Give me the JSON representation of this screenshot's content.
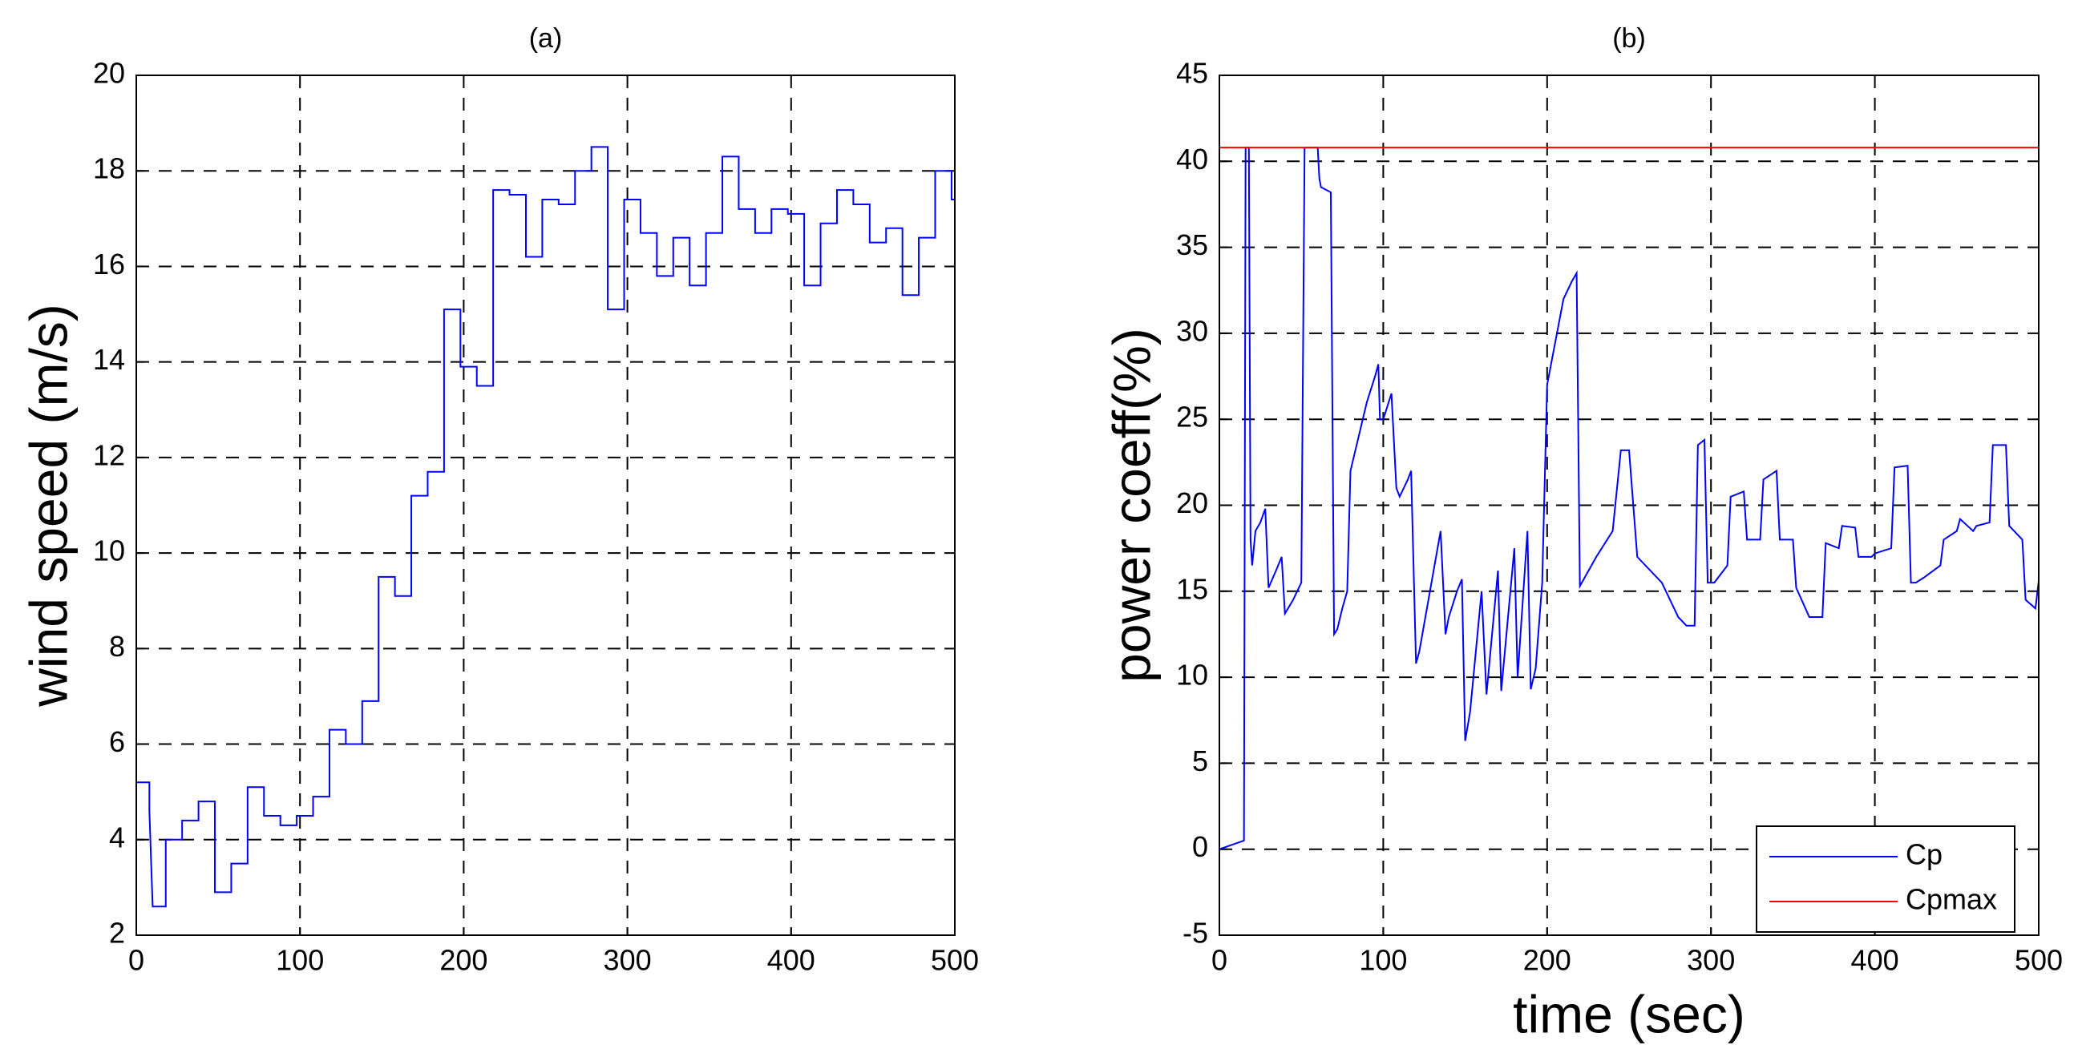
{
  "chart_data": [
    {
      "type": "line",
      "title": "(a)",
      "ylabel": "wind speed (m/s)",
      "xlim": [
        0,
        500
      ],
      "ylim": [
        2,
        20
      ],
      "xticks": [
        0,
        100,
        200,
        300,
        400,
        500
      ],
      "yticks": [
        2,
        4,
        6,
        8,
        10,
        12,
        14,
        16,
        18,
        20
      ],
      "grid": true,
      "series": [
        {
          "color": "#0000ff",
          "x": [
            0,
            8,
            8,
            10,
            18,
            18,
            28,
            28,
            38,
            38,
            48,
            48,
            58,
            58,
            68,
            68,
            78,
            78,
            88,
            88,
            98,
            98,
            108,
            108,
            118,
            118,
            128,
            128,
            138,
            138,
            148,
            148,
            158,
            158,
            168,
            168,
            178,
            178,
            188,
            188,
            198,
            198,
            208,
            208,
            218,
            218,
            228,
            228,
            238,
            238,
            248,
            248,
            258,
            258,
            268,
            268,
            278,
            278,
            288,
            288,
            298,
            298,
            308,
            308,
            318,
            318,
            328,
            328,
            338,
            338,
            348,
            348,
            358,
            358,
            368,
            368,
            378,
            378,
            388,
            388,
            398,
            398,
            408,
            408,
            418,
            418,
            428,
            428,
            438,
            438,
            448,
            448,
            458,
            458,
            468,
            468,
            478,
            478,
            488,
            488,
            498,
            498,
            500
          ],
          "values": [
            5.2,
            5.2,
            4.6,
            2.6,
            2.6,
            4.0,
            4.0,
            4.4,
            4.4,
            4.8,
            4.8,
            2.9,
            2.9,
            3.5,
            3.5,
            5.1,
            5.1,
            4.5,
            4.5,
            4.3,
            4.3,
            4.5,
            4.5,
            4.9,
            4.9,
            6.3,
            6.3,
            6.0,
            6.0,
            6.9,
            6.9,
            9.5,
            9.5,
            9.1,
            9.1,
            11.2,
            11.2,
            11.7,
            11.7,
            15.1,
            15.1,
            13.9,
            13.9,
            13.5,
            13.5,
            17.6,
            17.6,
            17.5,
            17.5,
            16.2,
            16.2,
            17.4,
            17.4,
            17.3,
            17.3,
            18.0,
            18.0,
            18.5,
            18.5,
            15.1,
            15.1,
            17.4,
            17.4,
            16.7,
            16.7,
            15.8,
            15.8,
            16.6,
            16.6,
            15.6,
            15.6,
            16.7,
            16.7,
            18.3,
            18.3,
            17.2,
            17.2,
            16.7,
            16.7,
            17.2,
            17.2,
            17.1,
            17.1,
            15.6,
            15.6,
            16.9,
            16.9,
            17.6,
            17.6,
            17.3,
            17.3,
            16.5,
            16.5,
            16.8,
            16.8,
            15.4,
            15.4,
            16.6,
            16.6,
            18.0,
            18.0,
            17.4,
            17.4
          ]
        }
      ]
    },
    {
      "type": "line",
      "title": "(b)",
      "xlabel": "time (sec)",
      "ylabel": "power coeff(%)",
      "xlim": [
        0,
        500
      ],
      "ylim": [
        -5,
        45
      ],
      "xticks": [
        0,
        100,
        200,
        300,
        400,
        500
      ],
      "yticks": [
        -5,
        0,
        5,
        10,
        15,
        20,
        25,
        30,
        35,
        40,
        45
      ],
      "grid": true,
      "legend": "lower right",
      "series": [
        {
          "name": "Cp",
          "color": "#0000ff",
          "x": [
            0,
            15,
            16,
            18,
            19,
            20,
            22,
            25,
            28,
            30,
            35,
            38,
            40,
            45,
            50,
            52,
            60,
            61,
            62,
            68,
            70,
            72,
            75,
            78,
            80,
            90,
            95,
            97,
            98,
            100,
            105,
            108,
            110,
            115,
            117,
            120,
            122,
            135,
            138,
            140,
            145,
            148,
            150,
            153,
            160,
            163,
            170,
            172,
            180,
            182,
            188,
            190,
            193,
            197,
            200,
            202,
            210,
            215,
            218,
            220,
            230,
            240,
            245,
            250,
            255,
            270,
            280,
            285,
            290,
            292,
            296,
            298,
            300,
            302,
            310,
            312,
            320,
            322,
            330,
            332,
            340,
            342,
            350,
            352,
            360,
            362,
            368,
            370,
            378,
            380,
            388,
            390,
            398,
            400,
            410,
            412,
            420,
            422,
            425,
            430,
            440,
            442,
            450,
            452,
            460,
            462,
            470,
            472,
            480,
            482,
            490,
            492,
            498,
            500
          ],
          "values": [
            0,
            0.5,
            40.8,
            40.8,
            18,
            16.5,
            18.5,
            19,
            19.8,
            15.2,
            16.3,
            17,
            13.7,
            14.5,
            15.5,
            40.8,
            40.8,
            39,
            38.5,
            38.2,
            12.5,
            12.8,
            14,
            15,
            22,
            26,
            27.5,
            28.2,
            25,
            25,
            26.5,
            21,
            20.5,
            21.5,
            22,
            10.8,
            11.5,
            18.5,
            12.5,
            13.5,
            15,
            15.7,
            6.3,
            8,
            15,
            9,
            16.2,
            9.2,
            17.5,
            10,
            18.5,
            9.3,
            10.5,
            15.5,
            27,
            28,
            32,
            33,
            33.5,
            15.3,
            17,
            18.5,
            23.2,
            23.2,
            17,
            15.5,
            13.5,
            13,
            13,
            23.5,
            23.8,
            15.5,
            15.5,
            15.5,
            16.5,
            20.5,
            20.8,
            18,
            18,
            21.5,
            22,
            18,
            18,
            15.2,
            13.5,
            13.5,
            13.5,
            17.8,
            17.5,
            18.8,
            18.7,
            17,
            17,
            17.2,
            17.5,
            22.2,
            22.3,
            15.5,
            15.5,
            15.8,
            16.5,
            18,
            18.5,
            19.2,
            18.5,
            18.8,
            19,
            23.5,
            23.5,
            18.8,
            18,
            14.5,
            14,
            15.6
          ]
        },
        {
          "name": "Cpmax",
          "color": "#ff0000",
          "x": [
            0,
            500
          ],
          "values": [
            40.8,
            40.8
          ]
        }
      ]
    }
  ]
}
